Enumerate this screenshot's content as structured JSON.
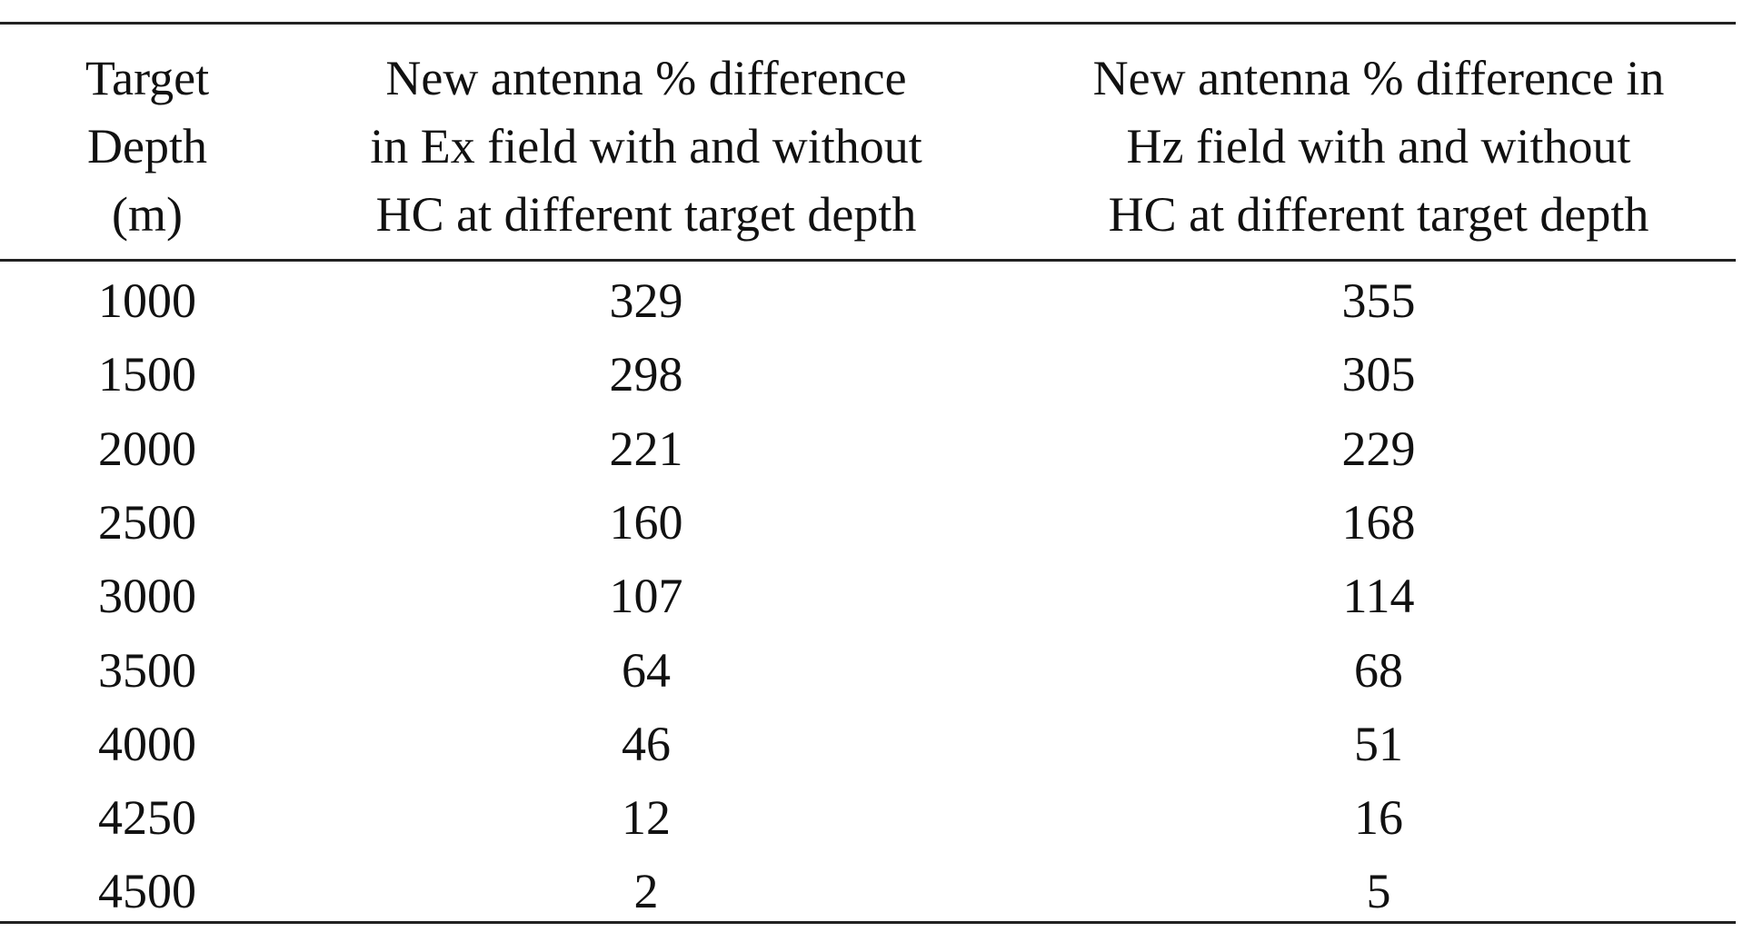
{
  "table": {
    "headers": [
      [
        "Target",
        "Depth",
        "(m)"
      ],
      [
        "New antenna % difference",
        "in Ex field with and without",
        "HC at different target depth"
      ],
      [
        "New antenna % difference in",
        "Hz field with and without",
        "HC at different target depth"
      ]
    ],
    "rows": [
      [
        1000,
        329,
        355
      ],
      [
        1500,
        298,
        305
      ],
      [
        2000,
        221,
        229
      ],
      [
        2500,
        160,
        168
      ],
      [
        3000,
        107,
        114
      ],
      [
        3500,
        64,
        68
      ],
      [
        4000,
        46,
        51
      ],
      [
        4250,
        12,
        16
      ],
      [
        4500,
        2,
        5
      ]
    ]
  }
}
